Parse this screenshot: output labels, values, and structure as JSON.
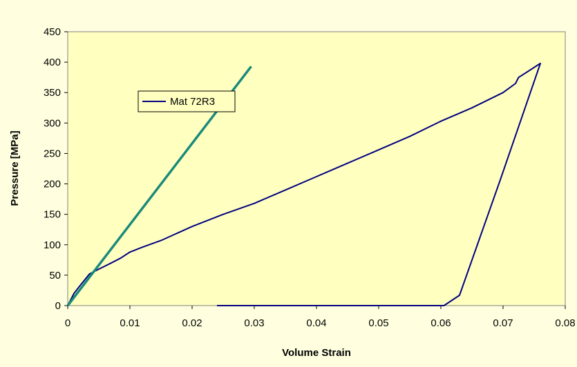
{
  "chart_data": {
    "type": "line",
    "title": "",
    "xlabel": "Volume Strain",
    "ylabel": "Pressure [MPa]",
    "xlim": [
      0,
      0.08
    ],
    "ylim": [
      0,
      450
    ],
    "x_ticks": [
      "0",
      "0.01",
      "0.02",
      "0.03",
      "0.04",
      "0.05",
      "0.06",
      "0.07",
      "0.08"
    ],
    "y_ticks": [
      "0",
      "50",
      "100",
      "150",
      "200",
      "250",
      "300",
      "350",
      "400",
      "450"
    ],
    "grid": false,
    "legend_position": "top-left",
    "series": [
      {
        "name": "Mat 72R3",
        "color": "#000080",
        "x": [
          0,
          0.001,
          0.002,
          0.0035,
          0.005,
          0.007,
          0.0085,
          0.01,
          0.012,
          0.015,
          0.02,
          0.025,
          0.03,
          0.035,
          0.04,
          0.045,
          0.05,
          0.055,
          0.06,
          0.065,
          0.07,
          0.072,
          0.0725,
          0.076,
          0.0695,
          0.063,
          0.0605,
          0.024
        ],
        "y": [
          0,
          20,
          33,
          52,
          60,
          70,
          78,
          88,
          96,
          107,
          130,
          150,
          168,
          190,
          212,
          234,
          256,
          278,
          303,
          325,
          350,
          365,
          375,
          398,
          205,
          17,
          0,
          0
        ]
      },
      {
        "name": "",
        "color": "#1a8a7a",
        "x": [
          0,
          0.0295
        ],
        "y": [
          0,
          393
        ]
      }
    ]
  }
}
